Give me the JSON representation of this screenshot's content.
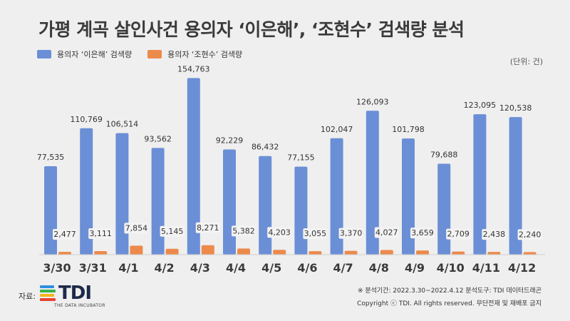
{
  "header": {
    "title": "가평 계곡 살인사건 용의자 ‘이은해’, ‘조현수’ 검색량 분석",
    "unit": "(단위: 건)"
  },
  "legend": {
    "series1": "용의자 ‘이은해’ 검색량",
    "series2": "용의자 ‘조현수’ 검색량"
  },
  "footer": {
    "source_label": "자료:",
    "logo_text": "TDI",
    "logo_sub": "THE DATA INCUBATOR",
    "note": "※ 분석기간: 2022.3.30~2022.4.12   분석도구: TDI 데이터드래곤",
    "copyright": "Copyright ⓒ TDI. All rights reserved. 무단전재 및 재배포 금지"
  },
  "colors": {
    "series1": "#6b8fd6",
    "series2": "#ec8a4c",
    "axis_label": "#3a3a3a"
  },
  "chart_data": {
    "type": "bar",
    "title": "가평 계곡 살인사건 용의자 ‘이은해’, ‘조현수’ 검색량 분석",
    "categories": [
      "3/30",
      "3/31",
      "4/1",
      "4/2",
      "4/3",
      "4/4",
      "4/5",
      "4/6",
      "4/7",
      "4/8",
      "4/9",
      "4/10",
      "4/11",
      "4/12"
    ],
    "series": [
      {
        "name": "용의자 ‘이은해’ 검색량",
        "values": [
          77535,
          110769,
          106514,
          93562,
          154763,
          92229,
          86432,
          77155,
          102047,
          126093,
          101798,
          79688,
          123095,
          120538
        ]
      },
      {
        "name": "용의자 ‘조현수’ 검색량",
        "values": [
          2477,
          3111,
          7854,
          5145,
          8271,
          5382,
          4203,
          3055,
          3370,
          4027,
          3659,
          2709,
          2438,
          2240
        ]
      }
    ],
    "ylim": [
      0,
      160000
    ],
    "grid": false,
    "legend_position": "top-left"
  }
}
